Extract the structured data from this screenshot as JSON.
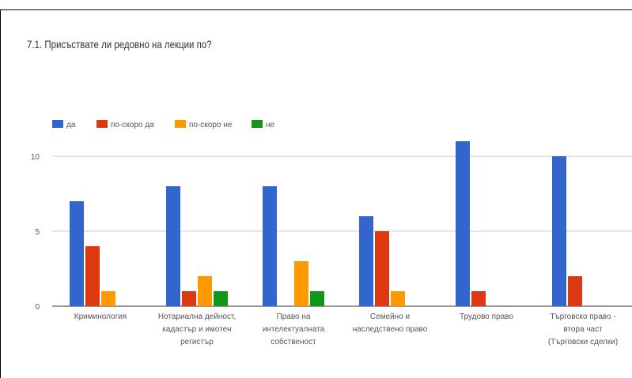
{
  "chart_data": {
    "type": "bar",
    "title": "7.1. Присъствате ли редовно на лекции по?",
    "categories": [
      [
        "Криминология"
      ],
      [
        "Нотариална дейност,",
        "кадастър и имотен",
        "регистър"
      ],
      [
        "Право на",
        "интелектуалната",
        "собственост"
      ],
      [
        "Семейно и",
        "наследствено право"
      ],
      [
        "Трудово право"
      ],
      [
        "Търговско право -",
        "втора част",
        "(Търговски сделки)"
      ]
    ],
    "series": [
      {
        "name": "да",
        "color": "#3366cc",
        "values": [
          7,
          8,
          8,
          6,
          11,
          10
        ]
      },
      {
        "name": "по-скоро да",
        "color": "#dc3912",
        "values": [
          4,
          1,
          0,
          5,
          1,
          2
        ]
      },
      {
        "name": "по-скоро не",
        "color": "#ff9900",
        "values": [
          1,
          2,
          3,
          1,
          0,
          0
        ]
      },
      {
        "name": "не",
        "color": "#109618",
        "values": [
          0,
          1,
          1,
          0,
          0,
          0
        ]
      }
    ],
    "yticks": [
      0,
      5,
      10
    ],
    "ylim": [
      0,
      11
    ],
    "legend_position": "top-left",
    "grid": true
  }
}
